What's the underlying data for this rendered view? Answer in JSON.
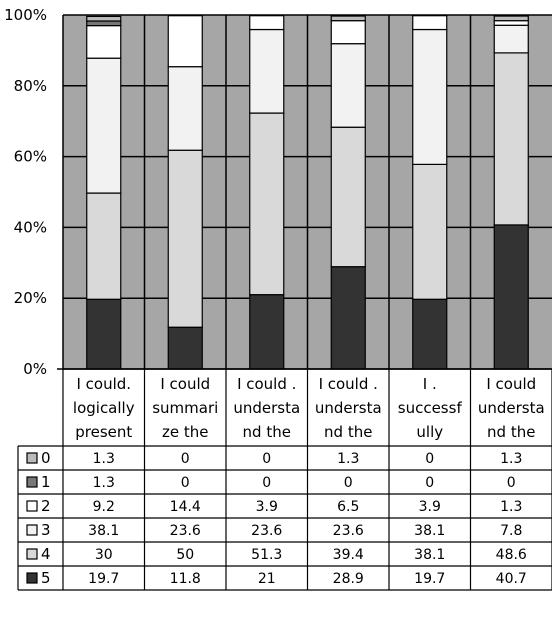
{
  "chart_data": {
    "type": "bar",
    "stacked": true,
    "normalized": true,
    "grid": true,
    "ylim": [
      0,
      100
    ],
    "y_ticks": [
      "0%",
      "20%",
      "40%",
      "60%",
      "80%",
      "100%"
    ],
    "categories": [
      [
        "I could.",
        "logically",
        "present"
      ],
      [
        "I could",
        "summari",
        "ze the"
      ],
      [
        "I could .",
        "understa",
        "nd the"
      ],
      [
        "I could .",
        "understa",
        "nd the"
      ],
      [
        "I .",
        "successf",
        "ully"
      ],
      [
        "I could",
        "understa",
        "nd the"
      ]
    ],
    "series": [
      {
        "name": "5",
        "color": "#333333",
        "values": [
          19.7,
          11.8,
          21,
          28.9,
          19.7,
          40.7
        ]
      },
      {
        "name": "4",
        "color": "#d9d9d9",
        "values": [
          30,
          50,
          51.3,
          39.4,
          38.1,
          48.6
        ]
      },
      {
        "name": "3",
        "color": "#f2f2f2",
        "values": [
          38.1,
          23.6,
          23.6,
          23.6,
          38.1,
          7.8
        ]
      },
      {
        "name": "2",
        "color": "#ffffff",
        "values": [
          9.2,
          14.4,
          3.9,
          6.5,
          3.9,
          1.3
        ]
      },
      {
        "name": "1",
        "color": "#777777",
        "values": [
          1.3,
          0,
          0,
          0,
          0,
          0
        ]
      },
      {
        "name": "0",
        "color": "#bbbbbb",
        "values": [
          1.3,
          0,
          0,
          1.3,
          0,
          1.3
        ]
      }
    ],
    "table": {
      "row_order": [
        "0",
        "1",
        "2",
        "3",
        "4",
        "5"
      ],
      "rows": {
        "0": [
          "1.3",
          "0",
          "0",
          "1.3",
          "0",
          "1.3"
        ],
        "1": [
          "1.3",
          "0",
          "0",
          "0",
          "0",
          "0"
        ],
        "2": [
          "9.2",
          "14.4",
          "3.9",
          "6.5",
          "3.9",
          "1.3"
        ],
        "3": [
          "38.1",
          "23.6",
          "23.6",
          "23.6",
          "38.1",
          "7.8"
        ],
        "4": [
          "30",
          "50",
          "51.3",
          "39.4",
          "38.1",
          "48.6"
        ],
        "5": [
          "19.7",
          "11.8",
          "21",
          "28.9",
          "19.7",
          "40.7"
        ]
      }
    },
    "colors": {
      "plot_background": "#a6a6a6",
      "gridline": "#000000",
      "outline": "#000000"
    }
  }
}
